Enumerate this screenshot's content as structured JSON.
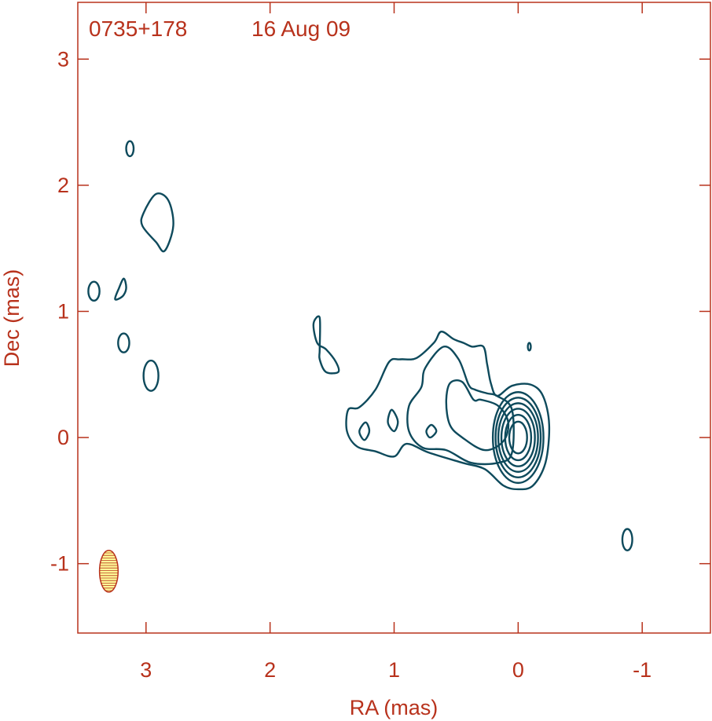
{
  "chart_data": {
    "type": "contour",
    "source_name": "0735+178",
    "epoch": "16 Aug 09",
    "xlabel": "RA (mas)",
    "ylabel": "Dec (mas)",
    "xlim": [
      3.55,
      -1.55
    ],
    "ylim": [
      -1.55,
      3.45
    ],
    "x_reversed": true,
    "x_ticks": [
      3,
      2,
      1,
      0,
      -1
    ],
    "x_tick_labels": [
      "3",
      "2",
      "1",
      "0",
      "-1"
    ],
    "y_ticks": [
      3,
      2,
      1,
      0,
      -1
    ],
    "y_tick_labels": [
      "3",
      "2",
      "1",
      "0",
      "-1"
    ],
    "grid": false,
    "beam": {
      "ra": 3.3,
      "dec": -1.06,
      "major_mas": 0.33,
      "minor_mas": 0.15,
      "pa_deg": 0
    },
    "colors": {
      "axes": "#b8321c",
      "contours": "#0e4a5c",
      "beam_fill": "#ffff99"
    },
    "core_contours": [
      {
        "rx": 0.072,
        "ry": 0.126
      },
      {
        "rx": 0.105,
        "ry": 0.18
      },
      {
        "rx": 0.135,
        "ry": 0.228
      },
      {
        "rx": 0.16,
        "ry": 0.272
      },
      {
        "rx": 0.182,
        "ry": 0.316
      },
      {
        "rx": 0.204,
        "ry": 0.36
      }
    ],
    "jet_contours": [
      [
        [
          0.17,
          0.33
        ],
        [
          0.05,
          0.41
        ],
        [
          -0.1,
          0.42
        ],
        [
          -0.2,
          0.33
        ],
        [
          -0.25,
          0.1
        ],
        [
          -0.22,
          -0.2
        ],
        [
          -0.12,
          -0.38
        ],
        [
          0.0,
          -0.41
        ],
        [
          0.12,
          -0.38
        ],
        [
          0.27,
          -0.25
        ],
        [
          0.45,
          -0.2
        ],
        [
          0.72,
          -0.12
        ],
        [
          0.9,
          -0.05
        ],
        [
          1.0,
          -0.15
        ],
        [
          1.15,
          -0.11
        ],
        [
          1.3,
          -0.07
        ],
        [
          1.38,
          0.05
        ],
        [
          1.37,
          0.22
        ],
        [
          1.28,
          0.24
        ],
        [
          1.15,
          0.38
        ],
        [
          1.04,
          0.6
        ],
        [
          0.95,
          0.62
        ],
        [
          0.82,
          0.63
        ],
        [
          0.68,
          0.75
        ],
        [
          0.62,
          0.84
        ],
        [
          0.52,
          0.78
        ],
        [
          0.44,
          0.75
        ],
        [
          0.37,
          0.72
        ],
        [
          0.28,
          0.72
        ],
        [
          0.25,
          0.58
        ],
        [
          0.22,
          0.43
        ]
      ],
      [
        [
          0.17,
          0.33
        ],
        [
          0.05,
          0.22
        ],
        [
          0.05,
          -0.12
        ],
        [
          0.16,
          -0.2
        ],
        [
          0.38,
          -0.2
        ],
        [
          0.58,
          -0.1
        ],
        [
          0.77,
          -0.08
        ],
        [
          0.88,
          0.05
        ],
        [
          0.88,
          0.25
        ],
        [
          0.78,
          0.4
        ],
        [
          0.75,
          0.55
        ],
        [
          0.6,
          0.72
        ],
        [
          0.48,
          0.62
        ],
        [
          0.4,
          0.42
        ],
        [
          0.35,
          0.38
        ],
        [
          0.25,
          0.35
        ]
      ],
      [
        [
          0.16,
          0.25
        ],
        [
          0.08,
          0.12
        ],
        [
          0.12,
          -0.03
        ],
        [
          0.27,
          -0.1
        ],
        [
          0.45,
          0.0
        ],
        [
          0.55,
          0.1
        ],
        [
          0.58,
          0.28
        ],
        [
          0.55,
          0.43
        ],
        [
          0.45,
          0.44
        ],
        [
          0.36,
          0.3
        ],
        [
          0.3,
          0.3
        ]
      ],
      [
        [
          0.7,
          0.1
        ],
        [
          0.66,
          0.05
        ],
        [
          0.71,
          0.0
        ],
        [
          0.74,
          0.05
        ]
      ],
      [
        [
          1.02,
          0.22
        ],
        [
          0.97,
          0.13
        ],
        [
          1.0,
          0.05
        ],
        [
          1.05,
          0.12
        ]
      ],
      [
        [
          1.23,
          0.12
        ],
        [
          1.2,
          0.05
        ],
        [
          1.24,
          -0.02
        ],
        [
          1.28,
          0.05
        ]
      ],
      [
        [
          1.6,
          0.95
        ],
        [
          1.65,
          0.9
        ],
        [
          1.62,
          0.75
        ],
        [
          1.55,
          0.7
        ],
        [
          1.47,
          0.6
        ],
        [
          1.45,
          0.52
        ],
        [
          1.55,
          0.52
        ],
        [
          1.6,
          0.62
        ],
        [
          1.6,
          0.7
        ]
      ],
      [
        [
          3.02,
          1.78
        ],
        [
          2.92,
          1.93
        ],
        [
          2.82,
          1.88
        ],
        [
          2.78,
          1.68
        ],
        [
          2.85,
          1.48
        ],
        [
          2.92,
          1.55
        ],
        [
          3.03,
          1.68
        ]
      ],
      [
        [
          3.25,
          1.1
        ],
        [
          3.22,
          1.18
        ],
        [
          3.18,
          1.26
        ],
        [
          3.16,
          1.19
        ],
        [
          3.18,
          1.13
        ],
        [
          3.22,
          1.1
        ]
      ]
    ],
    "small_components": [
      {
        "ra": 3.13,
        "dec": 2.29,
        "rx": 0.03,
        "ry": 0.06
      },
      {
        "ra": 3.42,
        "dec": 1.16,
        "rx": 0.045,
        "ry": 0.075
      },
      {
        "ra": 3.18,
        "dec": 0.75,
        "rx": 0.045,
        "ry": 0.075
      },
      {
        "ra": 2.96,
        "dec": 0.49,
        "rx": 0.06,
        "ry": 0.12
      },
      {
        "ra": -0.09,
        "dec": 0.72,
        "rx": 0.012,
        "ry": 0.03
      },
      {
        "ra": -0.88,
        "dec": -0.81,
        "rx": 0.04,
        "ry": 0.085
      }
    ]
  }
}
